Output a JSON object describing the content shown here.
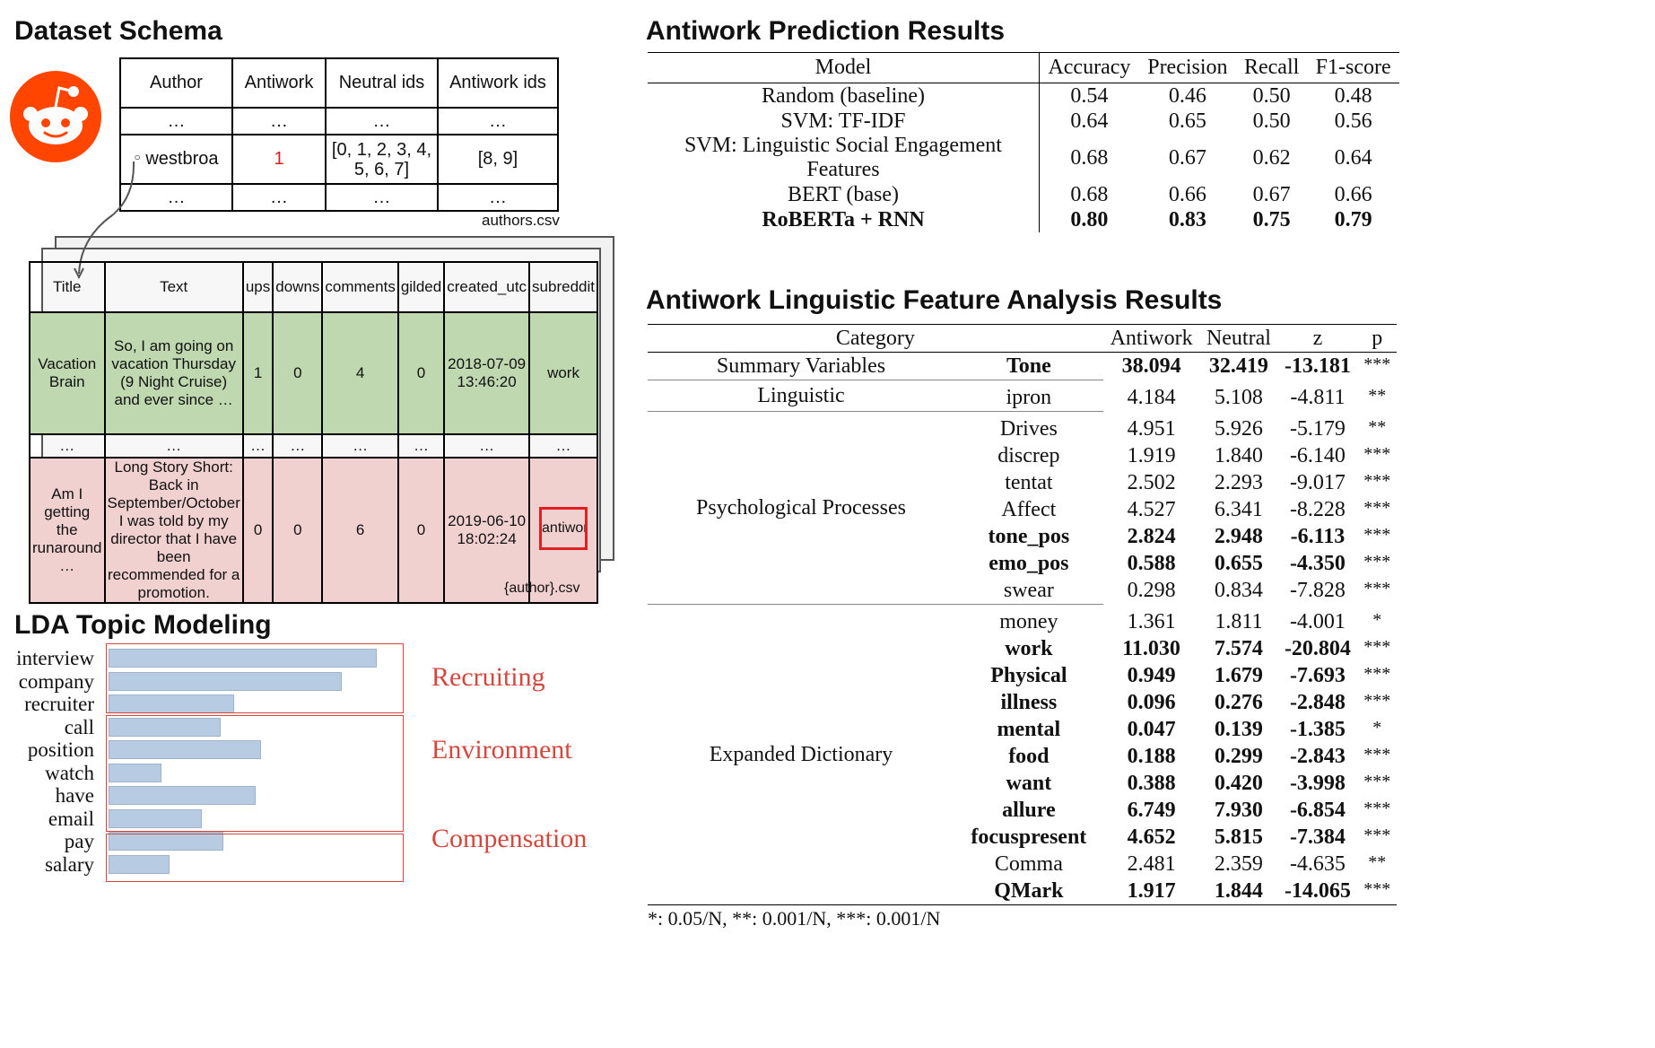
{
  "schema": {
    "title": "Dataset Schema",
    "authors_table": {
      "headers": [
        "Author",
        "Antiwork",
        "Neutral ids",
        "Antiwork ids"
      ],
      "rows": [
        [
          "…",
          "…",
          "…",
          "…"
        ],
        [
          "westbroa",
          "1",
          "[0, 1, 2, 3, 4, 5, 6, 7]",
          "[8, 9]"
        ],
        [
          "…",
          "…",
          "…",
          "…"
        ]
      ],
      "caption": "authors.csv"
    },
    "posts_table": {
      "headers": [
        "Title",
        "Text",
        "ups",
        "downs",
        "comments",
        "gilded",
        "created_utc",
        "subreddit"
      ],
      "rows": [
        [
          "Vacation Brain",
          "So, I am going on vacation Thursday (9 Night Cruise) and ever since …",
          "1",
          "0",
          "4",
          "0",
          "2018-07-09 13:46:20",
          "work"
        ],
        [
          "…",
          "…",
          "…",
          "…",
          "…",
          "…",
          "…",
          "…"
        ],
        [
          "Am I getting the runaround …",
          "Long Story Short: Back in September/October I was told by my director that I have been recommended for a promotion.",
          "0",
          "0",
          "6",
          "0",
          "2019-06-10 18:02:24",
          "antiwork"
        ]
      ],
      "caption": "{author}.csv"
    },
    "colors": {
      "reddit": "#ff4500",
      "antiwork_value": "#d62020",
      "green_row": "#bfd8b0",
      "pink_row": "#f1d0d0",
      "highlight": "#e02020"
    }
  },
  "prediction": {
    "title": "Antiwork Prediction Results",
    "headers": [
      "Model",
      "Accuracy",
      "Precision",
      "Recall",
      "F1-score"
    ],
    "rows": [
      [
        "Random (baseline)",
        "0.54",
        "0.46",
        "0.50",
        "0.48"
      ],
      [
        "SVM: TF-IDF",
        "0.64",
        "0.65",
        "0.50",
        "0.56"
      ],
      [
        "SVM: Linguistic Social Engagement Features",
        "0.68",
        "0.67",
        "0.62",
        "0.64"
      ],
      [
        "BERT (base)",
        "0.68",
        "0.66",
        "0.67",
        "0.66"
      ],
      [
        "RoBERTa + RNN",
        "0.80",
        "0.83",
        "0.75",
        "0.79"
      ]
    ]
  },
  "features": {
    "title": "Antiwork Linguistic Feature Analysis Results",
    "headers": [
      "Category",
      "Antiwork",
      "Neutral",
      "z",
      "p"
    ],
    "groups": [
      {
        "name": "Summary Variables",
        "rows": [
          {
            "f": "Tone",
            "a": "38.094",
            "n": "32.419",
            "z": "-13.181",
            "p": "***",
            "bold": true
          }
        ]
      },
      {
        "name": "Linguistic",
        "rows": [
          {
            "f": "ipron",
            "a": "4.184",
            "n": "5.108",
            "z": "-4.811",
            "p": "**",
            "bold": false
          }
        ]
      },
      {
        "name": "Psychological Processes",
        "rows": [
          {
            "f": "Drives",
            "a": "4.951",
            "n": "5.926",
            "z": "-5.179",
            "p": "**",
            "bold": false
          },
          {
            "f": "discrep",
            "a": "1.919",
            "n": "1.840",
            "z": "-6.140",
            "p": "***",
            "bold": false
          },
          {
            "f": "tentat",
            "a": "2.502",
            "n": "2.293",
            "z": "-9.017",
            "p": "***",
            "bold": false
          },
          {
            "f": "Affect",
            "a": "4.527",
            "n": "6.341",
            "z": "-8.228",
            "p": "***",
            "bold": false
          },
          {
            "f": "tone_pos",
            "a": "2.824",
            "n": "2.948",
            "z": "-6.113",
            "p": "***",
            "bold": true
          },
          {
            "f": "emo_pos",
            "a": "0.588",
            "n": "0.655",
            "z": "-4.350",
            "p": "***",
            "bold": true
          },
          {
            "f": "swear",
            "a": "0.298",
            "n": "0.834",
            "z": "-7.828",
            "p": "***",
            "bold": false
          }
        ]
      },
      {
        "name": "Expanded Dictionary",
        "rows": [
          {
            "f": "money",
            "a": "1.361",
            "n": "1.811",
            "z": "-4.001",
            "p": "*",
            "bold": false
          },
          {
            "f": "work",
            "a": "11.030",
            "n": "7.574",
            "z": "-20.804",
            "p": "***",
            "bold": true
          },
          {
            "f": "Physical",
            "a": "0.949",
            "n": "1.679",
            "z": "-7.693",
            "p": "***",
            "bold": true
          },
          {
            "f": "illness",
            "a": "0.096",
            "n": "0.276",
            "z": "-2.848",
            "p": "***",
            "bold": true
          },
          {
            "f": "mental",
            "a": "0.047",
            "n": "0.139",
            "z": "-1.385",
            "p": "*",
            "bold": true
          },
          {
            "f": "food",
            "a": "0.188",
            "n": "0.299",
            "z": "-2.843",
            "p": "***",
            "bold": true
          },
          {
            "f": "want",
            "a": "0.388",
            "n": "0.420",
            "z": "-3.998",
            "p": "***",
            "bold": true
          },
          {
            "f": "allure",
            "a": "6.749",
            "n": "7.930",
            "z": "-6.854",
            "p": "***",
            "bold": true
          },
          {
            "f": "focuspresent",
            "a": "4.652",
            "n": "5.815",
            "z": "-7.384",
            "p": "***",
            "bold": true
          },
          {
            "f": "Comma",
            "a": "2.481",
            "n": "2.359",
            "z": "-4.635",
            "p": "**",
            "bold": false
          },
          {
            "f": "QMark",
            "a": "1.917",
            "n": "1.844",
            "z": "-14.065",
            "p": "***",
            "bold": true
          }
        ]
      }
    ],
    "footnote": "*: 0.05/N, **: 0.001/N, ***: 0.001/N"
  },
  "lda": {
    "title": "LDA Topic Modeling",
    "words": [
      "interview",
      "company",
      "recruiter",
      "call",
      "position",
      "watch",
      "have",
      "email",
      "pay",
      "salary"
    ],
    "weights": [
      0.99,
      0.86,
      0.46,
      0.41,
      0.56,
      0.19,
      0.54,
      0.34,
      0.42,
      0.22
    ],
    "topics": [
      "Recruiting",
      "Environment",
      "Compensation"
    ],
    "bar_color": "#b7cce3",
    "topic_color": "#d4473d"
  }
}
